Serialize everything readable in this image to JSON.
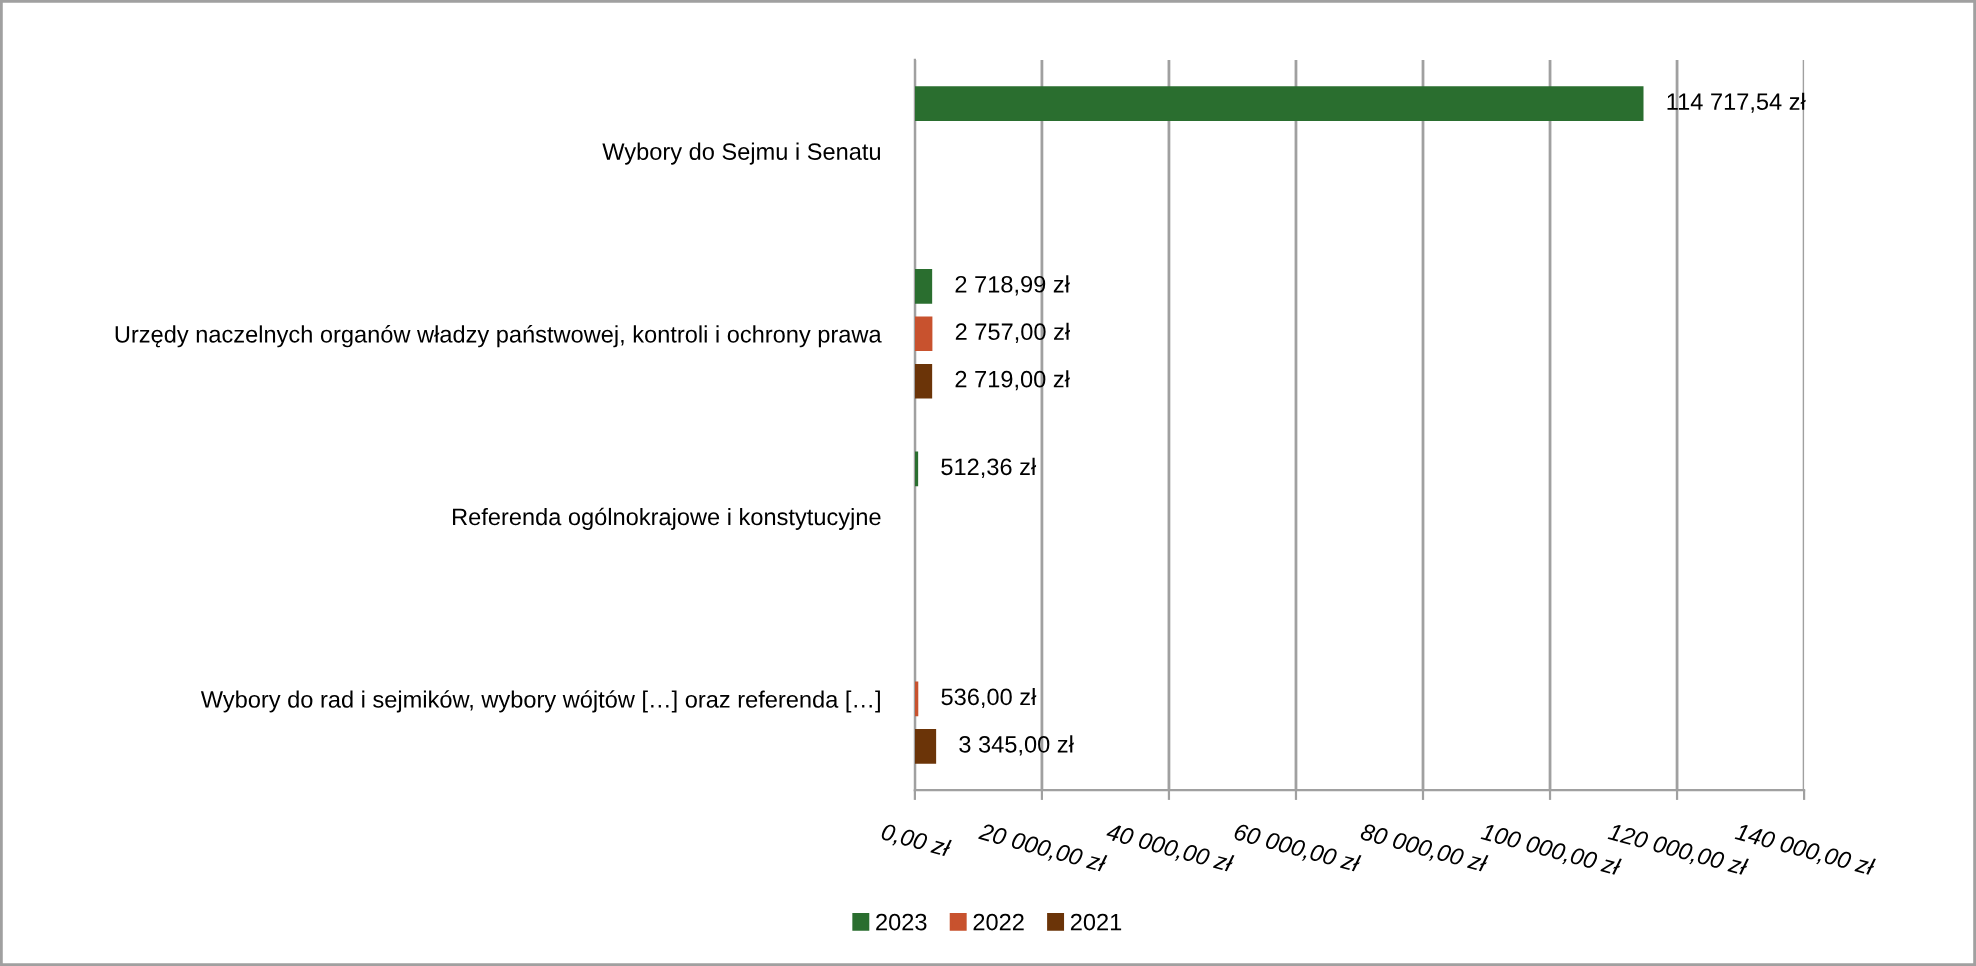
{
  "chart_data": {
    "type": "bar",
    "orientation": "horizontal",
    "categories": [
      "Wybory do Sejmu i Senatu",
      "Urzędy naczelnych organów władzy państwowej, kontroli i ochrony prawa",
      "Referenda ogólnokrajowe i konstytucyjne",
      "Wybory do rad i sejmików, wybory wójtów […] oraz referenda […]"
    ],
    "series": [
      {
        "name": "2023",
        "color": "#2a6e2f",
        "values": [
          114717.54,
          2718.99,
          512.36,
          null
        ],
        "value_labels": [
          "114 717,54 zł",
          "2 718,99 zł",
          "512,36 zł",
          null
        ]
      },
      {
        "name": "2022",
        "color": "#c8522e",
        "values": [
          null,
          2757.0,
          null,
          536.0
        ],
        "value_labels": [
          null,
          "2 757,00 zł",
          null,
          "536,00 zł"
        ]
      },
      {
        "name": "2021",
        "color": "#6b3408",
        "values": [
          null,
          2719.0,
          null,
          3345.0
        ],
        "value_labels": [
          null,
          "2 719,00 zł",
          null,
          "3 345,00 zł"
        ]
      }
    ],
    "xlim": [
      0,
      140000
    ],
    "xticks": [
      {
        "value": 0,
        "label": "0,00 zł"
      },
      {
        "value": 20000,
        "label": "20 000,00 zł"
      },
      {
        "value": 40000,
        "label": "40 000,00 zł"
      },
      {
        "value": 60000,
        "label": "60 000,00 zł"
      },
      {
        "value": 80000,
        "label": "80 000,00 zł"
      },
      {
        "value": 100000,
        "label": "100 000,00 zł"
      },
      {
        "value": 120000,
        "label": "120 000,00 zł"
      },
      {
        "value": 140000,
        "label": "140 000,00 zł"
      }
    ],
    "grid": "x",
    "legend": "bottom"
  }
}
